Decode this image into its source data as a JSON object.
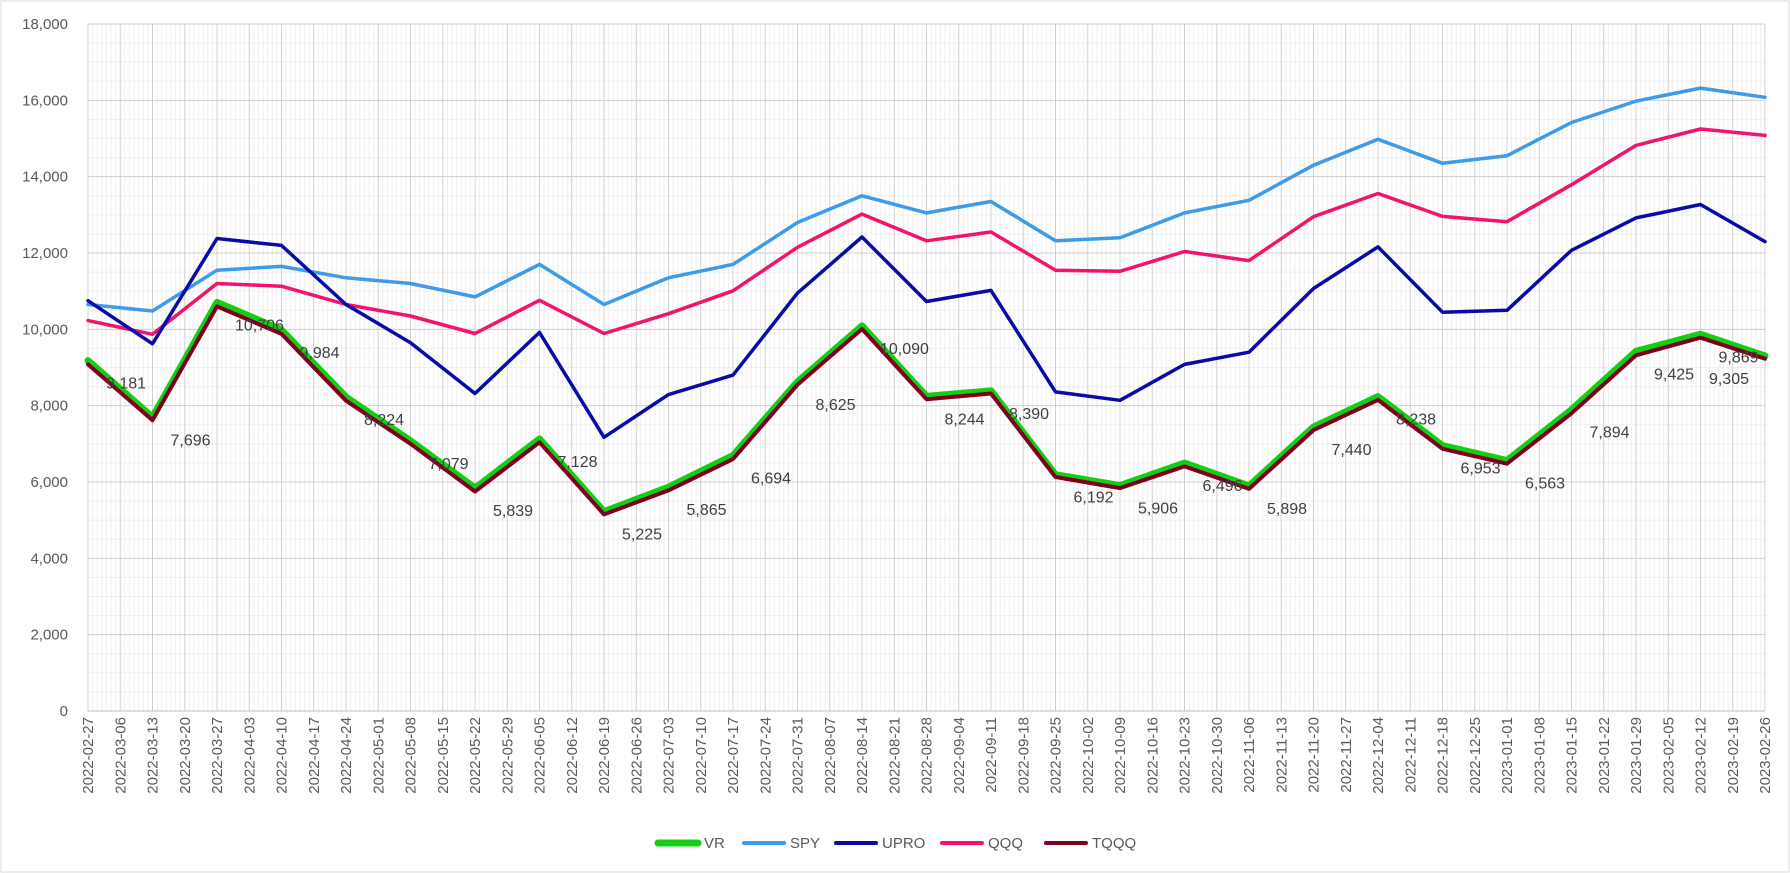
{
  "chart_data": {
    "type": "line",
    "title": "",
    "xlabel": "",
    "ylabel": "",
    "ylim": [
      0,
      18000
    ],
    "yticks": [
      0,
      2000,
      4000,
      6000,
      8000,
      10000,
      12000,
      14000,
      16000,
      18000
    ],
    "ytick_labels": [
      "0",
      "2,000",
      "4,000",
      "6,000",
      "8,000",
      "10,000",
      "12,000",
      "14,000",
      "16,000",
      "18,000"
    ],
    "grid": true,
    "legend_position": "bottom",
    "x": [
      "2022-02-27",
      "2022-03-13",
      "2022-03-27",
      "2022-04-10",
      "2022-04-24",
      "2022-05-08",
      "2022-05-22",
      "2022-06-05",
      "2022-06-19",
      "2022-07-03",
      "2022-07-17",
      "2022-07-31",
      "2022-08-14",
      "2022-08-28",
      "2022-09-11",
      "2022-09-25",
      "2022-10-09",
      "2022-10-23",
      "2022-11-06",
      "2022-11-20",
      "2022-12-04",
      "2022-12-18",
      "2023-01-01",
      "2023-01-15",
      "2023-01-29",
      "2023-02-12",
      "2023-02-26"
    ],
    "x_tick_labels": [
      "2022-02-27",
      "2022-03-06",
      "2022-03-13",
      "2022-03-20",
      "2022-03-27",
      "2022-04-03",
      "2022-04-10",
      "2022-04-17",
      "2022-04-24",
      "2022-05-01",
      "2022-05-08",
      "2022-05-15",
      "2022-05-22",
      "2022-05-29",
      "2022-06-05",
      "2022-06-12",
      "2022-06-19",
      "2022-06-26",
      "2022-07-03",
      "2022-07-10",
      "2022-07-17",
      "2022-07-24",
      "2022-07-31",
      "2022-08-07",
      "2022-08-14",
      "2022-08-21",
      "2022-08-28",
      "2022-09-04",
      "2022-09-11",
      "2022-09-18",
      "2022-09-25",
      "2022-10-02",
      "2022-10-09",
      "2022-10-16",
      "2022-10-23",
      "2022-10-30",
      "2022-11-06",
      "2022-11-13",
      "2022-11-20",
      "2022-11-27",
      "2022-12-04",
      "2022-12-11",
      "2022-12-18",
      "2022-12-25",
      "2023-01-01",
      "2023-01-08",
      "2023-01-15",
      "2023-01-22",
      "2023-01-29",
      "2023-02-05",
      "2023-02-12",
      "2023-02-19",
      "2023-02-26"
    ],
    "series": [
      {
        "name": "SPY",
        "color": "#3d9be9",
        "values": [
          10650,
          10480,
          11550,
          11650,
          11350,
          11200,
          10850,
          11700,
          10650,
          11350,
          11700,
          12800,
          13500,
          13050,
          13350,
          12320,
          12400,
          13050,
          13380,
          14300,
          14980,
          14350,
          14550,
          15420,
          15980,
          16320,
          16080
        ]
      },
      {
        "name": "QQQ",
        "color": "#f2136d",
        "values": [
          10230,
          9870,
          11200,
          11130,
          10650,
          10350,
          9890,
          10760,
          9890,
          10410,
          11010,
          12150,
          13020,
          12320,
          12550,
          11550,
          11520,
          12040,
          11800,
          12950,
          13560,
          12960,
          12820,
          13790,
          14820,
          15250,
          15080
        ]
      },
      {
        "name": "UPRO",
        "color": "#0a0aa8",
        "values": [
          10750,
          9620,
          12380,
          12200,
          10650,
          9650,
          8320,
          9920,
          7170,
          8290,
          8800,
          10950,
          12420,
          10730,
          11020,
          8360,
          8140,
          9080,
          9400,
          11070,
          12160,
          10450,
          10500,
          12070,
          12920,
          13270,
          12300
        ]
      },
      {
        "name": "VR",
        "color": "#13cf13",
        "values": [
          9181,
          7696,
          10706,
          9984,
          8224,
          7079,
          5839,
          7128,
          5225,
          5865,
          6694,
          8625,
          10090,
          8244,
          8390,
          6192,
          5906,
          6496,
          5898,
          7440,
          8238,
          6953,
          6563,
          7894,
          9425,
          9869,
          9305
        ]
      },
      {
        "name": "TQQQ",
        "color": "#800020",
        "values": [
          9080,
          7620,
          10600,
          9880,
          8130,
          7000,
          5750,
          7040,
          5150,
          5780,
          6600,
          8550,
          10010,
          8170,
          8320,
          6130,
          5840,
          6410,
          5820,
          7360,
          8150,
          6870,
          6480,
          7800,
          9320,
          9780,
          9230
        ]
      }
    ],
    "legend_order": [
      "VR",
      "SPY",
      "UPRO",
      "QQQ",
      "TQQQ"
    ],
    "data_labels": {
      "series": "VR",
      "labels": [
        "9,181",
        "7,696",
        "10,706",
        "9,984",
        "8,224",
        "7,079",
        "5,839",
        "7,128",
        "5,225",
        "5,865",
        "6,694",
        "8,625",
        "10,090",
        "8,244",
        "8,390",
        "6,192",
        "5,906",
        "6,496",
        "5,898",
        "7,440",
        "8,238",
        "6,953",
        "6,563",
        "7,894",
        "9,425",
        "9,869",
        "9,305"
      ]
    }
  }
}
